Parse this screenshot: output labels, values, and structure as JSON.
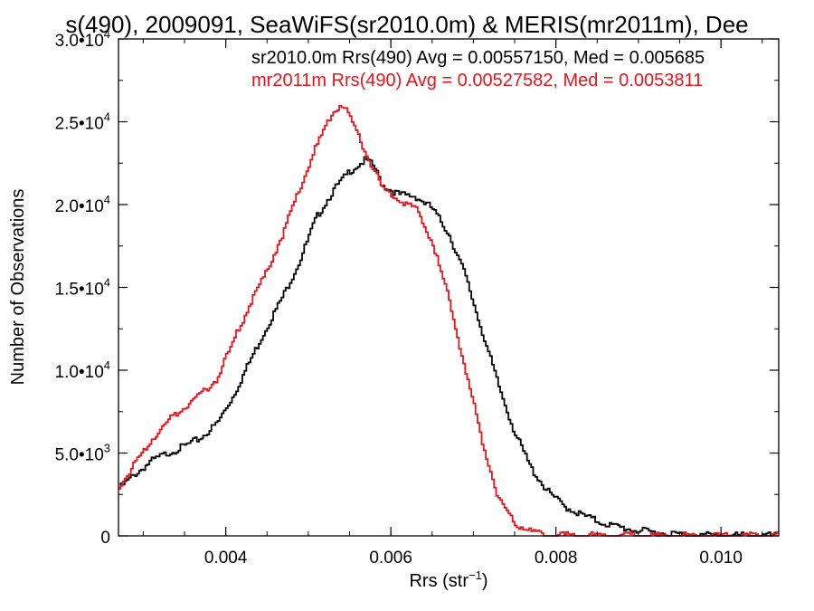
{
  "chart_data": {
    "type": "line",
    "title": "s(490), 2009091, SeaWiFS(sr2010.0m) & MERIS(mr2011m), Dee",
    "xlabel": "Rrs (str",
    "xlabel_unit_exp": "−1",
    "xlabel_close": ")",
    "ylabel": "Number of Observations",
    "xlim": [
      0.0027,
      0.0107
    ],
    "ylim": [
      0,
      30000
    ],
    "x_ticks": [
      {
        "value": 0.004,
        "label": "0.004"
      },
      {
        "value": 0.006,
        "label": "0.006"
      },
      {
        "value": 0.008,
        "label": "0.008"
      },
      {
        "value": 0.01,
        "label": "0.010"
      }
    ],
    "y_ticks": [
      {
        "value": 0,
        "mantissa": "0",
        "exp": ""
      },
      {
        "value": 5000,
        "mantissa": "5.0•10",
        "exp": "3"
      },
      {
        "value": 10000,
        "mantissa": "1.0•10",
        "exp": "4"
      },
      {
        "value": 15000,
        "mantissa": "1.5•10",
        "exp": "4"
      },
      {
        "value": 20000,
        "mantissa": "2.0•10",
        "exp": "4"
      },
      {
        "value": 25000,
        "mantissa": "2.5•10",
        "exp": "4"
      },
      {
        "value": 30000,
        "mantissa": "3.0•10",
        "exp": "4"
      }
    ],
    "legend_placement": "top-right",
    "legend": [
      {
        "text": "sr2010.0m Rrs(490) Avg = 0.00557150, Med = 0.005685",
        "color": "#000000"
      },
      {
        "text": "mr2011m Rrs(490) Avg = 0.00527582, Med = 0.0053811",
        "color": "#e8141c"
      }
    ],
    "grid": false,
    "series": [
      {
        "color": "#000000",
        "x": [
          0.0027,
          0.0029,
          0.0031,
          0.0033,
          0.0035,
          0.0037,
          0.0039,
          0.0041,
          0.0043,
          0.0045,
          0.0047,
          0.0049,
          0.0051,
          0.0053,
          0.0055,
          0.0057,
          0.0058,
          0.0059,
          0.0061,
          0.0063,
          0.0065,
          0.0067,
          0.0069,
          0.0071,
          0.0073,
          0.0075,
          0.0077,
          0.0079,
          0.0081,
          0.0083,
          0.0085,
          0.0087,
          0.0089,
          0.0091,
          0.0093,
          0.0095,
          0.0097,
          0.0099,
          0.0101,
          0.0103,
          0.0105,
          0.0107
        ],
        "y": [
          2800,
          3700,
          4500,
          5000,
          5400,
          5900,
          6800,
          8500,
          10600,
          12600,
          14500,
          16600,
          19200,
          20800,
          22000,
          22700,
          22300,
          21200,
          20600,
          20500,
          19800,
          18300,
          15800,
          12500,
          9200,
          6300,
          4100,
          2700,
          1800,
          1300,
          900,
          600,
          400,
          250,
          150,
          100,
          60,
          40,
          25,
          15,
          10,
          5
        ]
      },
      {
        "color": "#e8141c",
        "x": [
          0.0027,
          0.0029,
          0.0031,
          0.0033,
          0.0035,
          0.0037,
          0.0039,
          0.0041,
          0.0043,
          0.0045,
          0.0047,
          0.0049,
          0.0051,
          0.0053,
          0.0054,
          0.0055,
          0.0057,
          0.0059,
          0.0061,
          0.0063,
          0.0065,
          0.0067,
          0.0069,
          0.0071,
          0.0073,
          0.0075,
          0.0077,
          0.0079,
          0.0081,
          0.0083,
          0.0085,
          0.0087,
          0.0089,
          0.0091,
          0.0093,
          0.0095,
          0.0097,
          0.0099,
          0.0101,
          0.0103,
          0.0105,
          0.0107
        ],
        "y": [
          2900,
          4300,
          5800,
          6900,
          7800,
          8500,
          9500,
          11800,
          14000,
          16000,
          18300,
          21000,
          23500,
          25600,
          26100,
          25400,
          23100,
          21000,
          20300,
          19800,
          17800,
          14400,
          10200,
          5900,
          2400,
          800,
          250,
          100,
          40,
          20,
          10,
          5,
          3,
          2,
          1,
          0,
          0,
          0,
          0,
          0,
          0,
          0
        ]
      }
    ]
  }
}
